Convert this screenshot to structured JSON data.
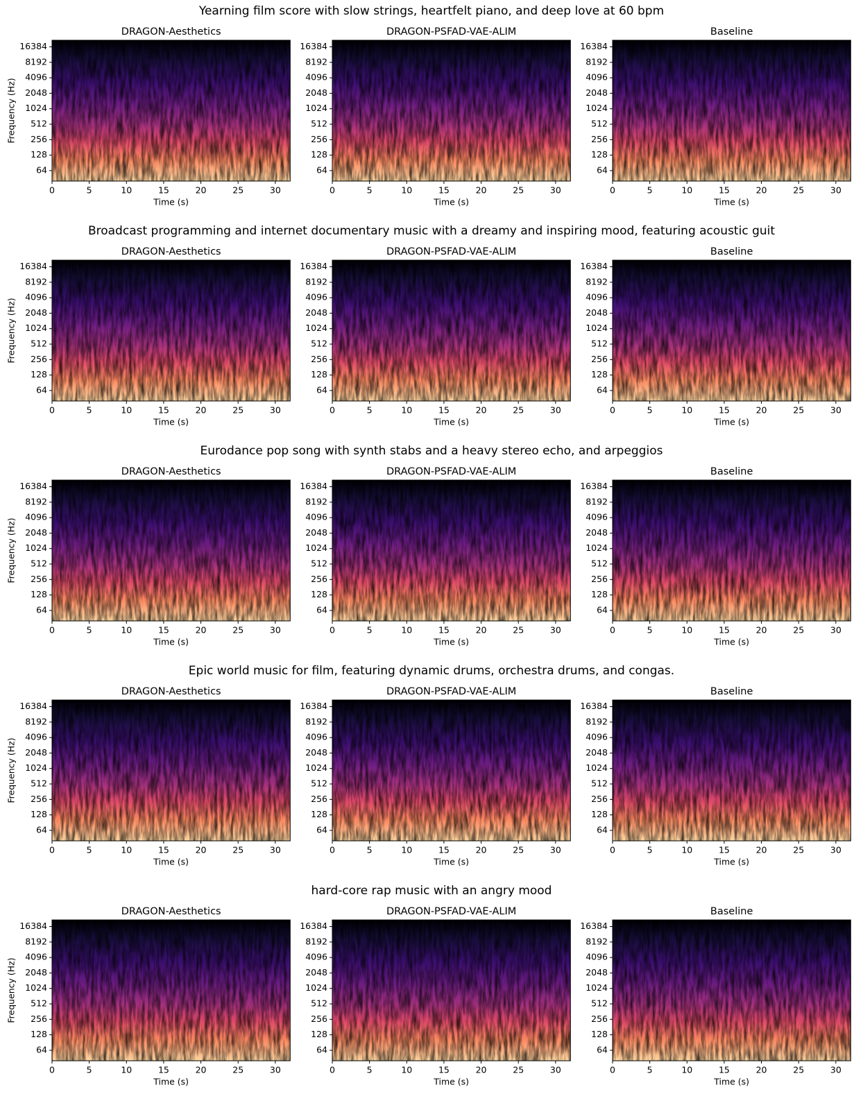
{
  "chart_data": [
    {
      "title": "Yearning film score with slow strings, heartfelt piano, and deep love at 60 bpm",
      "panels": [
        {
          "type": "spectrogram",
          "title": "DRAGON-Aesthetics",
          "xlabel": "Time (s)",
          "ylabel": "Frequency (Hz)",
          "xlim": [
            0,
            32
          ],
          "xticks": [
            0,
            5,
            10,
            15,
            20,
            25,
            30
          ],
          "ylim": [
            40,
            22050
          ],
          "yticks": [
            64,
            128,
            256,
            512,
            1024,
            2048,
            4096,
            8192,
            16384
          ],
          "yscale": "log2"
        },
        {
          "type": "spectrogram",
          "title": "DRAGON-PSFAD-VAE-ALIM",
          "xlabel": "Time (s)",
          "xlim": [
            0,
            32
          ],
          "xticks": [
            0,
            5,
            10,
            15,
            20,
            25,
            30
          ],
          "ylim": [
            40,
            22050
          ],
          "yticks": [
            64,
            128,
            256,
            512,
            1024,
            2048,
            4096,
            8192,
            16384
          ],
          "yscale": "log2"
        },
        {
          "type": "spectrogram",
          "title": "Baseline",
          "xlabel": "Time (s)",
          "xlim": [
            0,
            32
          ],
          "xticks": [
            0,
            5,
            10,
            15,
            20,
            25,
            30
          ],
          "ylim": [
            40,
            22050
          ],
          "yticks": [
            64,
            128,
            256,
            512,
            1024,
            2048,
            4096,
            8192,
            16384
          ],
          "yscale": "log2"
        }
      ]
    },
    {
      "title": "Broadcast programming and internet documentary music with a dreamy and inspiring mood, featuring acoustic guit",
      "panels": [
        {
          "type": "spectrogram",
          "title": "DRAGON-Aesthetics",
          "xlabel": "Time (s)",
          "ylabel": "Frequency (Hz)",
          "xlim": [
            0,
            32
          ],
          "xticks": [
            0,
            5,
            10,
            15,
            20,
            25,
            30
          ],
          "ylim": [
            40,
            22050
          ],
          "yticks": [
            64,
            128,
            256,
            512,
            1024,
            2048,
            4096,
            8192,
            16384
          ],
          "yscale": "log2"
        },
        {
          "type": "spectrogram",
          "title": "DRAGON-PSFAD-VAE-ALIM",
          "xlabel": "Time (s)",
          "xlim": [
            0,
            32
          ],
          "xticks": [
            0,
            5,
            10,
            15,
            20,
            25,
            30
          ],
          "ylim": [
            40,
            22050
          ],
          "yticks": [
            64,
            128,
            256,
            512,
            1024,
            2048,
            4096,
            8192,
            16384
          ],
          "yscale": "log2"
        },
        {
          "type": "spectrogram",
          "title": "Baseline",
          "xlabel": "Time (s)",
          "xlim": [
            0,
            32
          ],
          "xticks": [
            0,
            5,
            10,
            15,
            20,
            25,
            30
          ],
          "ylim": [
            40,
            22050
          ],
          "yticks": [
            64,
            128,
            256,
            512,
            1024,
            2048,
            4096,
            8192,
            16384
          ],
          "yscale": "log2"
        }
      ]
    },
    {
      "title": "Eurodance pop song with synth stabs and a heavy stereo echo, and arpeggios",
      "panels": [
        {
          "type": "spectrogram",
          "title": "DRAGON-Aesthetics",
          "xlabel": "Time (s)",
          "ylabel": "Frequency (Hz)",
          "xlim": [
            0,
            32
          ],
          "xticks": [
            0,
            5,
            10,
            15,
            20,
            25,
            30
          ],
          "ylim": [
            40,
            22050
          ],
          "yticks": [
            64,
            128,
            256,
            512,
            1024,
            2048,
            4096,
            8192,
            16384
          ],
          "yscale": "log2"
        },
        {
          "type": "spectrogram",
          "title": "DRAGON-PSFAD-VAE-ALIM",
          "xlabel": "Time (s)",
          "xlim": [
            0,
            32
          ],
          "xticks": [
            0,
            5,
            10,
            15,
            20,
            25,
            30
          ],
          "ylim": [
            40,
            22050
          ],
          "yticks": [
            64,
            128,
            256,
            512,
            1024,
            2048,
            4096,
            8192,
            16384
          ],
          "yscale": "log2"
        },
        {
          "type": "spectrogram",
          "title": "Baseline",
          "xlabel": "Time (s)",
          "xlim": [
            0,
            32
          ],
          "xticks": [
            0,
            5,
            10,
            15,
            20,
            25,
            30
          ],
          "ylim": [
            40,
            22050
          ],
          "yticks": [
            64,
            128,
            256,
            512,
            1024,
            2048,
            4096,
            8192,
            16384
          ],
          "yscale": "log2"
        }
      ]
    },
    {
      "title": "Epic world music for film, featuring dynamic drums, orchestra drums, and congas.",
      "panels": [
        {
          "type": "spectrogram",
          "title": "DRAGON-Aesthetics",
          "xlabel": "Time (s)",
          "ylabel": "Frequency (Hz)",
          "xlim": [
            0,
            32
          ],
          "xticks": [
            0,
            5,
            10,
            15,
            20,
            25,
            30
          ],
          "ylim": [
            40,
            22050
          ],
          "yticks": [
            64,
            128,
            256,
            512,
            1024,
            2048,
            4096,
            8192,
            16384
          ],
          "yscale": "log2"
        },
        {
          "type": "spectrogram",
          "title": "DRAGON-PSFAD-VAE-ALIM",
          "xlabel": "Time (s)",
          "xlim": [
            0,
            32
          ],
          "xticks": [
            0,
            5,
            10,
            15,
            20,
            25,
            30
          ],
          "ylim": [
            40,
            22050
          ],
          "yticks": [
            64,
            128,
            256,
            512,
            1024,
            2048,
            4096,
            8192,
            16384
          ],
          "yscale": "log2"
        },
        {
          "type": "spectrogram",
          "title": "Baseline",
          "xlabel": "Time (s)",
          "xlim": [
            0,
            32
          ],
          "xticks": [
            0,
            5,
            10,
            15,
            20,
            25,
            30
          ],
          "ylim": [
            40,
            22050
          ],
          "yticks": [
            64,
            128,
            256,
            512,
            1024,
            2048,
            4096,
            8192,
            16384
          ],
          "yscale": "log2"
        }
      ]
    },
    {
      "title": "hard-core rap music with an angry mood",
      "panels": [
        {
          "type": "spectrogram",
          "title": "DRAGON-Aesthetics",
          "xlabel": "Time (s)",
          "ylabel": "Frequency (Hz)",
          "xlim": [
            0,
            32
          ],
          "xticks": [
            0,
            5,
            10,
            15,
            20,
            25,
            30
          ],
          "ylim": [
            40,
            22050
          ],
          "yticks": [
            64,
            128,
            256,
            512,
            1024,
            2048,
            4096,
            8192,
            16384
          ],
          "yscale": "log2"
        },
        {
          "type": "spectrogram",
          "title": "DRAGON-PSFAD-VAE-ALIM",
          "xlabel": "Time (s)",
          "xlim": [
            0,
            32
          ],
          "xticks": [
            0,
            5,
            10,
            15,
            20,
            25,
            30
          ],
          "ylim": [
            40,
            22050
          ],
          "yticks": [
            64,
            128,
            256,
            512,
            1024,
            2048,
            4096,
            8192,
            16384
          ],
          "yscale": "log2"
        },
        {
          "type": "spectrogram",
          "title": "Baseline",
          "xlabel": "Time (s)",
          "xlim": [
            0,
            32
          ],
          "xticks": [
            0,
            5,
            10,
            15,
            20,
            25,
            30
          ],
          "ylim": [
            40,
            22050
          ],
          "yticks": [
            64,
            128,
            256,
            512,
            1024,
            2048,
            4096,
            8192,
            16384
          ],
          "yscale": "log2"
        }
      ]
    }
  ]
}
